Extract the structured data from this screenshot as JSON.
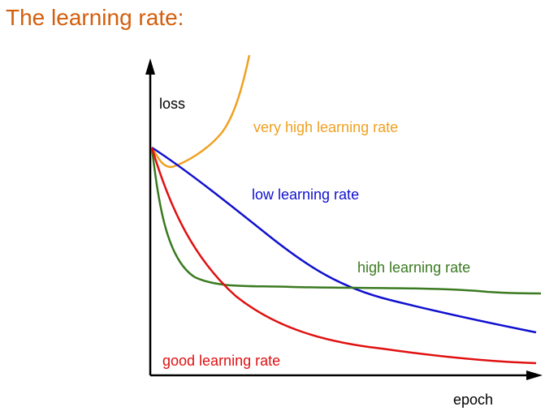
{
  "title": "The learning rate:",
  "chart": {
    "y_axis_label": "loss",
    "x_axis_label": "epoch",
    "curves": [
      {
        "label": "very high learning rate"
      },
      {
        "label": "low learning rate"
      },
      {
        "label": "high learning rate"
      },
      {
        "label": "good learning rate"
      }
    ]
  }
}
